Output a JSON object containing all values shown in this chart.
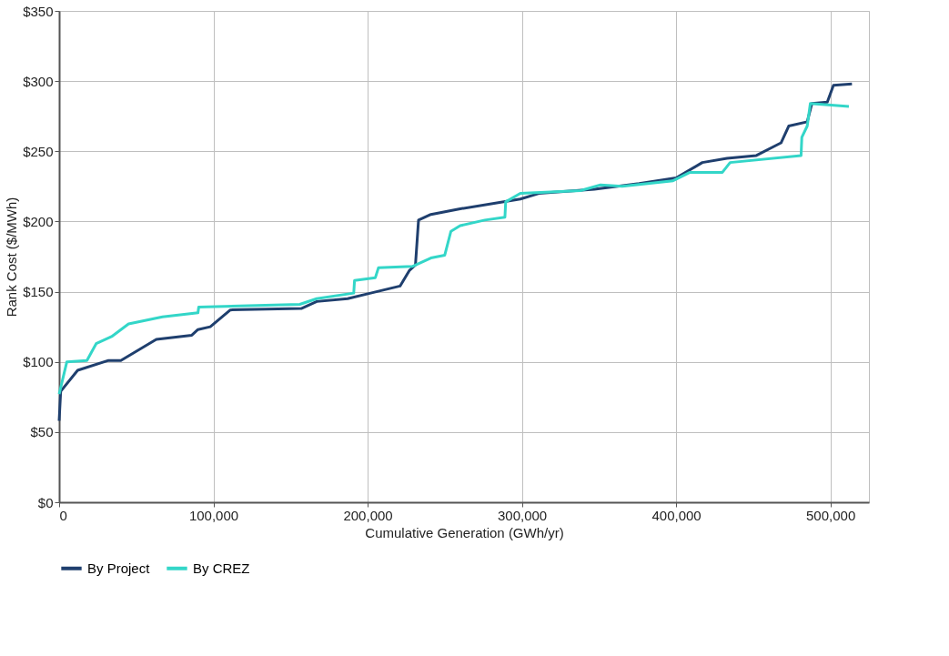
{
  "chart_data": {
    "type": "line",
    "xlabel": "Cumulative Generation (GWh/yr)",
    "ylabel": "Rank Cost ($/MWh)",
    "xlim": [
      0,
      525000
    ],
    "xticks": [
      0,
      {
        "value": 100000,
        "label": "100,000"
      },
      {
        "value": 200000,
        "label": "200,000"
      },
      {
        "value": 300000,
        "label": "300,000"
      },
      {
        "value": 400000,
        "label": "400,000"
      },
      {
        "value": 500000,
        "label": "500,000"
      }
    ],
    "ylim": [
      0,
      350
    ],
    "yticks": [
      {
        "value": 0,
        "label": "$0"
      },
      {
        "value": 50,
        "label": "$50"
      },
      {
        "value": 100,
        "label": "$100"
      },
      {
        "value": 150,
        "label": "$150"
      },
      {
        "value": 200,
        "label": "$200"
      },
      {
        "value": 250,
        "label": "$250"
      },
      {
        "value": 300,
        "label": "$300"
      },
      {
        "value": 350,
        "label": "$350"
      }
    ],
    "grid": true,
    "legend": "bottom",
    "line_style": "solid",
    "marker": "none",
    "series": [
      {
        "name": "By Project",
        "color": "#1f3f6e",
        "x": [
          0,
          1000,
          12000,
          32000,
          40000,
          63000,
          86000,
          90000,
          98000,
          111000,
          157000,
          167000,
          187000,
          202000,
          221000,
          227000,
          231000,
          233000,
          241000,
          260000,
          299000,
          311000,
          347000,
          376000,
          400000,
          417000,
          433000,
          452000,
          468000,
          473000,
          485000,
          488000,
          498000,
          502000,
          514000
        ],
        "values": [
          58,
          79,
          94,
          101,
          101,
          116,
          119,
          123,
          125,
          137,
          138,
          143,
          145,
          149,
          154,
          165,
          169,
          201,
          205,
          209,
          216,
          220,
          223,
          227,
          231,
          242,
          245,
          247,
          256,
          268,
          271,
          284,
          285,
          297,
          298
        ]
      },
      {
        "name": "By CREZ",
        "color": "#33d6c8",
        "x": [
          0,
          5000,
          18000,
          24000,
          34000,
          45000,
          67000,
          90000,
          90500,
          156000,
          167000,
          191000,
          191500,
          205000,
          207000,
          229000,
          241000,
          250000,
          254000,
          260000,
          276000,
          289000,
          289500,
          299000,
          338000,
          351000,
          365000,
          398000,
          409000,
          430000,
          435000,
          481000,
          481500,
          485000,
          487000,
          512000
        ],
        "values": [
          77,
          100,
          101,
          113,
          118,
          127,
          132,
          135,
          139,
          141,
          145,
          149,
          158,
          160,
          167,
          168,
          174,
          176,
          193,
          197,
          201,
          203,
          214,
          220,
          222,
          226,
          225,
          229,
          235,
          235,
          242,
          247,
          260,
          268,
          284,
          282
        ]
      }
    ]
  }
}
